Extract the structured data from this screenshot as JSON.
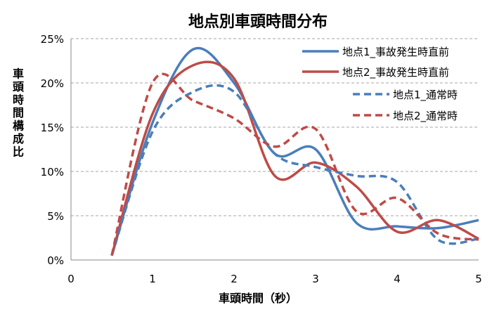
{
  "chart_data": {
    "type": "line",
    "title": "地点別車頭時間分布",
    "xlabel": "車頭時間（秒）",
    "ylabel": "車頭時間構成比",
    "xlim": [
      0,
      5
    ],
    "ylim": [
      0,
      25
    ],
    "x_ticks": [
      "0",
      "1",
      "2",
      "3",
      "4",
      "5"
    ],
    "y_ticks": [
      "0%",
      "5%",
      "10%",
      "15%",
      "20%",
      "25%"
    ],
    "grid": "horizontal dashed",
    "legend_position": "top-right",
    "series": [
      {
        "name": "地点1_事故発生時直前",
        "color": "#4a7ebb",
        "dash": "solid",
        "points": [
          [
            0.5,
            0.5
          ],
          [
            1.0,
            15.5
          ],
          [
            1.5,
            23.8
          ],
          [
            2.0,
            20.0
          ],
          [
            2.5,
            12.0
          ],
          [
            3.0,
            12.5
          ],
          [
            3.5,
            4.2
          ],
          [
            4.0,
            3.8
          ],
          [
            4.5,
            3.6
          ],
          [
            5.0,
            4.5
          ]
        ]
      },
      {
        "name": "地点2_事故発生時直前",
        "color": "#be4b48",
        "dash": "solid",
        "points": [
          [
            0.5,
            0.5
          ],
          [
            1.0,
            16.5
          ],
          [
            1.5,
            22.0
          ],
          [
            2.0,
            20.5
          ],
          [
            2.5,
            9.5
          ],
          [
            3.0,
            11.0
          ],
          [
            3.5,
            8.3
          ],
          [
            4.0,
            3.2
          ],
          [
            4.5,
            4.5
          ],
          [
            5.0,
            2.4
          ]
        ]
      },
      {
        "name": "地点1_通常時",
        "color": "#4a7ebb",
        "dash": "dashed",
        "points": [
          [
            0.5,
            0.5
          ],
          [
            1.0,
            14.5
          ],
          [
            1.5,
            19.0
          ],
          [
            2.0,
            19.0
          ],
          [
            2.5,
            12.0
          ],
          [
            3.0,
            10.5
          ],
          [
            3.5,
            9.5
          ],
          [
            4.0,
            8.8
          ],
          [
            4.5,
            2.3
          ],
          [
            5.0,
            2.4
          ]
        ]
      },
      {
        "name": "地点2_通常時",
        "color": "#be4b48",
        "dash": "dashed",
        "points": [
          [
            0.5,
            0.5
          ],
          [
            1.0,
            20.0
          ],
          [
            1.5,
            18.0
          ],
          [
            2.0,
            16.0
          ],
          [
            2.5,
            12.8
          ],
          [
            3.0,
            14.8
          ],
          [
            3.5,
            5.5
          ],
          [
            4.0,
            7.0
          ],
          [
            4.5,
            3.0
          ],
          [
            5.0,
            2.3
          ]
        ]
      }
    ]
  }
}
